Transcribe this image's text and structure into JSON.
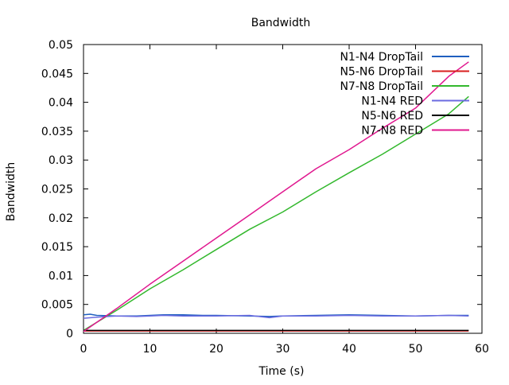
{
  "chart_data": {
    "type": "line",
    "title": "Bandwidth",
    "xlabel": "Time (s)",
    "ylabel": "Bandwidth",
    "xlim": [
      0,
      60
    ],
    "ylim": [
      0,
      0.05
    ],
    "xticks": [
      "0",
      "10",
      "20",
      "30",
      "40",
      "50",
      "60"
    ],
    "xtick_values": [
      0,
      10,
      20,
      30,
      40,
      50,
      60
    ],
    "yticks": [
      "0",
      "0.005",
      "0.01",
      "0.015",
      "0.02",
      "0.025",
      "0.03",
      "0.035",
      "0.04",
      "0.045",
      "0.05"
    ],
    "ytick_values": [
      0,
      0.005,
      0.01,
      0.015,
      0.02,
      0.025,
      0.03,
      0.035,
      0.04,
      0.045,
      0.05
    ],
    "grid": false,
    "legend_position": "top-right",
    "series": [
      {
        "name": "N1-N4 DropTail",
        "color": "#1f5fbf",
        "x": [
          0,
          1,
          2,
          5,
          8,
          10,
          12,
          15,
          18,
          20,
          25,
          28,
          30,
          35,
          40,
          45,
          50,
          55,
          58
        ],
        "y": [
          0.0032,
          0.0033,
          0.0031,
          0.003,
          0.003,
          0.0031,
          0.0032,
          0.0032,
          0.0031,
          0.0031,
          0.003,
          0.0029,
          0.003,
          0.0031,
          0.0032,
          0.0031,
          0.003,
          0.0031,
          0.0031
        ]
      },
      {
        "name": "N5-N6 DropTail",
        "color": "#d81e1e",
        "x": [
          0,
          5,
          10,
          15,
          20,
          25,
          30,
          35,
          40,
          45,
          50,
          55,
          58
        ],
        "y": [
          0.0004,
          0.0004,
          0.0004,
          0.0004,
          0.0004,
          0.0004,
          0.0004,
          0.0004,
          0.0004,
          0.0004,
          0.0004,
          0.0004,
          0.0004
        ]
      },
      {
        "name": "N7-N8 DropTail",
        "color": "#33b82d",
        "x": [
          0,
          5,
          10,
          15,
          20,
          25,
          30,
          35,
          40,
          45,
          50,
          55,
          58
        ],
        "y": [
          0.0005,
          0.004,
          0.0077,
          0.011,
          0.0145,
          0.018,
          0.021,
          0.0245,
          0.0278,
          0.031,
          0.0345,
          0.038,
          0.041
        ]
      },
      {
        "name": "N1-N4 RED",
        "color": "#6b6be0",
        "x": [
          0,
          2,
          5,
          8,
          10,
          12,
          15,
          20,
          25,
          28,
          30,
          35,
          40,
          45,
          50,
          55,
          58
        ],
        "y": [
          0.0026,
          0.0028,
          0.003,
          0.0029,
          0.003,
          0.0031,
          0.003,
          0.003,
          0.0031,
          0.0027,
          0.003,
          0.003,
          0.0031,
          0.003,
          0.003,
          0.0031,
          0.003
        ]
      },
      {
        "name": "N5-N6 RED",
        "color": "#000000",
        "x": [
          0,
          5,
          10,
          15,
          20,
          25,
          30,
          35,
          40,
          45,
          50,
          55,
          58
        ],
        "y": [
          0.0005,
          0.0005,
          0.0005,
          0.0005,
          0.0005,
          0.0005,
          0.0005,
          0.0005,
          0.0005,
          0.0005,
          0.0005,
          0.0005,
          0.0005
        ]
      },
      {
        "name": "N7-N8 RED",
        "color": "#e0188f",
        "x": [
          0,
          5,
          10,
          15,
          20,
          25,
          30,
          35,
          40,
          45,
          50,
          55,
          58
        ],
        "y": [
          0.0003,
          0.0043,
          0.0085,
          0.0125,
          0.0165,
          0.0205,
          0.0245,
          0.0285,
          0.0318,
          0.0355,
          0.039,
          0.0445,
          0.047
        ]
      }
    ]
  }
}
